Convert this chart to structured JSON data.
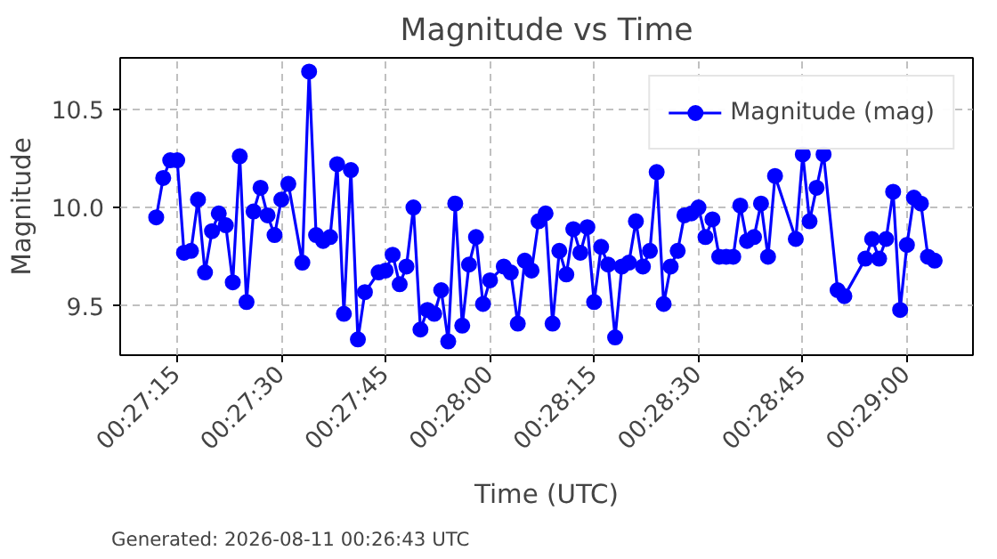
{
  "chart_data": {
    "type": "line",
    "title": "Magnitude vs Time",
    "xlabel": "Time (UTC)",
    "ylabel": "Magnitude",
    "annotations": [
      "Generated: 2026-08-11 00:26:43 UTC"
    ],
    "x": [
      0.45333,
      0.45361,
      0.45389,
      0.45417,
      0.45444,
      0.45472,
      0.455,
      0.45528,
      0.45556,
      0.45583,
      0.45611,
      0.45639,
      0.45667,
      0.45694,
      0.45722,
      0.4575,
      0.45778,
      0.45806,
      0.45833,
      0.45861,
      0.45917,
      0.45944,
      0.45972,
      0.46,
      0.46028,
      0.46056,
      0.46083,
      0.46111,
      0.46139,
      0.46167,
      0.46222,
      0.4625,
      0.46278,
      0.46306,
      0.46333,
      0.46361,
      0.46389,
      0.46417,
      0.46444,
      0.46472,
      0.465,
      0.46528,
      0.46556,
      0.46583,
      0.46611,
      0.46639,
      0.46667,
      0.46722,
      0.4675,
      0.46778,
      0.46806,
      0.46833,
      0.46861,
      0.46889,
      0.46917,
      0.46944,
      0.46972,
      0.47,
      0.47028,
      0.47056,
      0.47083,
      0.47111,
      0.47139,
      0.47167,
      0.47194,
      0.47222,
      0.4725,
      0.47278,
      0.47306,
      0.47333,
      0.47361,
      0.47389,
      0.47417,
      0.47444,
      0.47472,
      0.475,
      0.47528,
      0.47556,
      0.47583,
      0.47611,
      0.47639,
      0.47667,
      0.47694,
      0.47722,
      0.4775,
      0.47778,
      0.47806,
      0.47889,
      0.47917,
      0.47944,
      0.47972,
      0.48,
      0.48056,
      0.48083,
      0.48167,
      0.48194,
      0.48222,
      0.4825,
      0.48278,
      0.48306,
      0.48333,
      0.48361,
      0.48389,
      0.48417,
      0.48444
    ],
    "series": [
      {
        "name": "Magnitude (mag)",
        "color": "#0000ff",
        "values": [
          9.95,
          10.15,
          10.24,
          10.24,
          9.77,
          9.78,
          10.04,
          9.67,
          9.88,
          9.97,
          9.91,
          9.62,
          10.26,
          9.52,
          9.98,
          10.1,
          9.96,
          9.86,
          10.04,
          10.12,
          9.72,
          10.69,
          9.86,
          9.83,
          9.85,
          10.22,
          9.46,
          10.19,
          9.33,
          9.57,
          9.67,
          9.68,
          9.76,
          9.61,
          9.7,
          10.0,
          9.38,
          9.48,
          9.46,
          9.58,
          9.32,
          10.02,
          9.4,
          9.71,
          9.85,
          9.51,
          9.63,
          9.7,
          9.67,
          9.41,
          9.73,
          9.68,
          9.93,
          9.97,
          9.41,
          9.78,
          9.66,
          9.89,
          9.77,
          9.9,
          9.52,
          9.8,
          9.71,
          9.34,
          9.7,
          9.72,
          9.93,
          9.7,
          9.78,
          10.18,
          9.51,
          9.7,
          9.78,
          9.96,
          9.97,
          10.0,
          9.85,
          9.94,
          9.75,
          9.75,
          9.75,
          10.01,
          9.83,
          9.85,
          10.02,
          9.75,
          10.16,
          9.84,
          10.27,
          9.93,
          10.1,
          10.27,
          9.58,
          9.55,
          9.74,
          9.84,
          9.74,
          9.84,
          10.08,
          9.48,
          9.81,
          10.05,
          10.02,
          9.75,
          9.73
        ]
      }
    ],
    "xlim": [
      0.45189,
      0.48597
    ],
    "xticks": [
      {
        "value": 0.45417,
        "label": "00:27:15"
      },
      {
        "value": 0.45833,
        "label": "00:27:30"
      },
      {
        "value": 0.4625,
        "label": "00:27:45"
      },
      {
        "value": 0.46667,
        "label": "00:28:00"
      },
      {
        "value": 0.47083,
        "label": "00:28:15"
      },
      {
        "value": 0.475,
        "label": "00:28:30"
      },
      {
        "value": 0.47917,
        "label": "00:28:45"
      },
      {
        "value": 0.48333,
        "label": "00:29:00"
      }
    ],
    "ylim": [
      9.25,
      10.76
    ],
    "yticks": [
      {
        "value": 9.5,
        "label": "9.5"
      },
      {
        "value": 10.0,
        "label": "10.0"
      },
      {
        "value": 10.5,
        "label": "10.5"
      }
    ],
    "grid": true,
    "legend": "top right",
    "marker": "circle",
    "line_style": "solid"
  }
}
